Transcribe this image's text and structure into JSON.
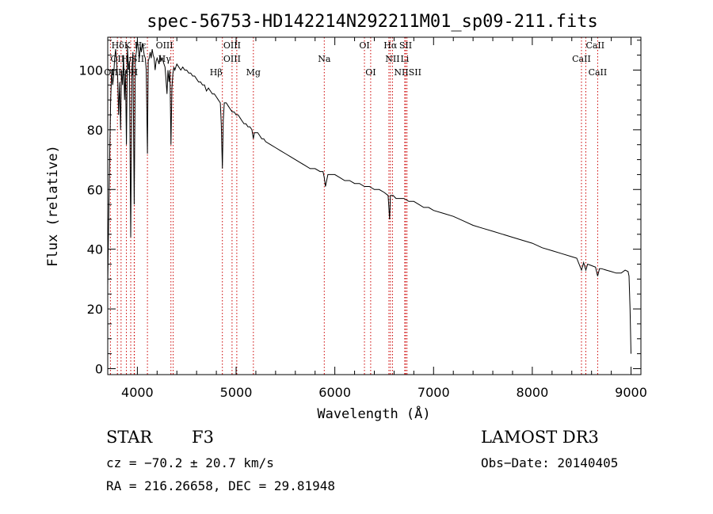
{
  "chart_data": {
    "type": "line",
    "title": "spec-56753-HD142214N292211M01_sp09-211.fits",
    "xlabel": "Wavelength (Å)",
    "ylabel": "Flux (relative)",
    "xlim": [
      3700,
      9100
    ],
    "ylim": [
      -2,
      111
    ],
    "xticks": [
      4000,
      5000,
      6000,
      7000,
      8000,
      9000
    ],
    "yticks": [
      0,
      20,
      40,
      60,
      80,
      100
    ],
    "series": [
      {
        "name": "flux",
        "x": [
          3700,
          3705,
          3712,
          3720,
          3730,
          3740,
          3750,
          3760,
          3770,
          3780,
          3790,
          3800,
          3810,
          3820,
          3830,
          3840,
          3850,
          3860,
          3870,
          3880,
          3889,
          3900,
          3910,
          3920,
          3933,
          3945,
          3955,
          3968,
          3980,
          3990,
          4000,
          4010,
          4020,
          4030,
          4040,
          4050,
          4060,
          4070,
          4080,
          4090,
          4102,
          4110,
          4120,
          4130,
          4140,
          4150,
          4160,
          4170,
          4180,
          4190,
          4200,
          4210,
          4220,
          4230,
          4240,
          4250,
          4260,
          4270,
          4280,
          4290,
          4300,
          4310,
          4320,
          4330,
          4340,
          4350,
          4360,
          4370,
          4380,
          4400,
          4420,
          4440,
          4460,
          4480,
          4500,
          4520,
          4540,
          4560,
          4580,
          4600,
          4620,
          4640,
          4660,
          4680,
          4700,
          4720,
          4740,
          4760,
          4780,
          4800,
          4820,
          4840,
          4850,
          4861,
          4870,
          4880,
          4900,
          4920,
          4940,
          4960,
          4980,
          5000,
          5020,
          5040,
          5060,
          5080,
          5100,
          5120,
          5140,
          5160,
          5175,
          5185,
          5200,
          5220,
          5240,
          5260,
          5280,
          5300,
          5350,
          5400,
          5450,
          5500,
          5550,
          5600,
          5650,
          5700,
          5750,
          5800,
          5850,
          5880,
          5893,
          5905,
          5930,
          5960,
          6000,
          6050,
          6100,
          6150,
          6200,
          6250,
          6300,
          6350,
          6400,
          6450,
          6500,
          6540,
          6555,
          6563,
          6572,
          6590,
          6620,
          6650,
          6700,
          6750,
          6800,
          6850,
          6900,
          6950,
          7000,
          7100,
          7200,
          7300,
          7400,
          7500,
          7600,
          7700,
          7800,
          7900,
          8000,
          8100,
          8200,
          8300,
          8400,
          8450,
          8498,
          8520,
          8542,
          8560,
          8600,
          8640,
          8662,
          8680,
          8700,
          8750,
          8800,
          8850,
          8900,
          8940,
          8970,
          8980,
          8990,
          9000
        ],
        "y": [
          28,
          40,
          55,
          72,
          90,
          100,
          95,
          98,
          104,
          107,
          102,
          98,
          85,
          96,
          80,
          100,
          95,
          105,
          90,
          100,
          75,
          108,
          100,
          103,
          44,
          100,
          106,
          55,
          104,
          106,
          110,
          107,
          104,
          108,
          106,
          109,
          107,
          105,
          104,
          100,
          72,
          103,
          104,
          106,
          104,
          107,
          105,
          104,
          100,
          103,
          104,
          103,
          102,
          105,
          103,
          104,
          103,
          102,
          101,
          97,
          92,
          100,
          96,
          100,
          75,
          94,
          99,
          101,
          100,
          102,
          101,
          100,
          101,
          100,
          100,
          99,
          99,
          98,
          98,
          97,
          96,
          96,
          95,
          95,
          93,
          94,
          93,
          92,
          92,
          91,
          90,
          89,
          82,
          67,
          83,
          89,
          89,
          88,
          87,
          86,
          86,
          85,
          85,
          84,
          83,
          82,
          82,
          81,
          81,
          80,
          77,
          79,
          79,
          79,
          78,
          77,
          77,
          76,
          75,
          74,
          73,
          72,
          71,
          70,
          69,
          68,
          67,
          67,
          66,
          66,
          64,
          61,
          65,
          65,
          65,
          64,
          63,
          63,
          62,
          62,
          61,
          61,
          60,
          60,
          59,
          58,
          50,
          58,
          58,
          58,
          57,
          57,
          57,
          56,
          56,
          55,
          54,
          54,
          53,
          52,
          51,
          49.5,
          48,
          47,
          46,
          45,
          44,
          43,
          42,
          40.5,
          39.5,
          38.5,
          37.5,
          37,
          33,
          35.5,
          33,
          35,
          34.5,
          34,
          31,
          33.5,
          33.5,
          33,
          32.5,
          32,
          32,
          33,
          32.5,
          31,
          20,
          5
        ]
      }
    ],
    "annotations": [
      {
        "label": "HδK",
        "wavelength": 3933,
        "tier": 1,
        "align": "end"
      },
      {
        "label": "Hε",
        "wavelength": 3970,
        "tier": 1,
        "align": "start"
      },
      {
        "label": "OIII",
        "wavelength": 4363,
        "tier": 1,
        "align": "end"
      },
      {
        "label": "OIII",
        "wavelength": 4959,
        "tier": 1,
        "align": "middle"
      },
      {
        "label": "OI",
        "wavelength": 6300,
        "tier": 1,
        "align": "middle"
      },
      {
        "label": "Hα",
        "wavelength": 6563,
        "tier": 1,
        "align": "middle"
      },
      {
        "label": "SII",
        "wavelength": 6717,
        "tier": 1,
        "align": "middle"
      },
      {
        "label": "CaII",
        "wavelength": 8542,
        "tier": 1,
        "align": "start"
      },
      {
        "label": "OII",
        "wavelength": 3727,
        "tier": 2,
        "align": "start"
      },
      {
        "label": "Hη",
        "wavelength": 3835,
        "tier": 2,
        "align": "start"
      },
      {
        "label": "SII",
        "wavelength": 4070,
        "tier": 2,
        "align": "end"
      },
      {
        "label": "Hγ",
        "wavelength": 4340,
        "tier": 2,
        "align": "end"
      },
      {
        "label": "OIII",
        "wavelength": 4959,
        "tier": 2,
        "align": "middle"
      },
      {
        "label": "Na",
        "wavelength": 5893,
        "tier": 2,
        "align": "middle"
      },
      {
        "label": "NII",
        "wavelength": 6584,
        "tier": 2,
        "align": "middle"
      },
      {
        "label": "Li",
        "wavelength": 6708,
        "tier": 2,
        "align": "middle"
      },
      {
        "label": "CaII",
        "wavelength": 8498,
        "tier": 2,
        "align": "middle"
      },
      {
        "label": "OIIHθ",
        "wavelength": 3798,
        "tier": 3,
        "align": "middle"
      },
      {
        "label": "H",
        "wavelength": 3968,
        "tier": 3,
        "align": "middle"
      },
      {
        "label": "Hβ",
        "wavelength": 4861,
        "tier": 3,
        "align": "end"
      },
      {
        "label": "Mg",
        "wavelength": 5175,
        "tier": 3,
        "align": "middle"
      },
      {
        "label": "OI",
        "wavelength": 6363,
        "tier": 3,
        "align": "middle"
      },
      {
        "label": "NIISII",
        "wavelength": 6600,
        "tier": 3,
        "align": "start"
      },
      {
        "label": "CaII",
        "wavelength": 8662,
        "tier": 3,
        "align": "middle"
      }
    ],
    "marker_lines": [
      3727,
      3798,
      3835,
      3889,
      3933,
      3968,
      3970,
      4102,
      4340,
      4363,
      4861,
      4959,
      5007,
      5175,
      5893,
      6300,
      6363,
      6548,
      6563,
      6584,
      6708,
      6717,
      6731,
      8498,
      8542,
      8662
    ],
    "colors": {
      "line": "#000000",
      "markers": "#cc0000",
      "axes": "#000000"
    }
  },
  "info": {
    "object_class": "STAR",
    "subclass": "F3",
    "survey": "LAMOST DR3",
    "redshift": "cz = −70.2 ± 20.7 km/s",
    "obs_date": "Obs−Date: 20140405",
    "coords": "RA = 216.26658, DEC =  29.81948"
  }
}
